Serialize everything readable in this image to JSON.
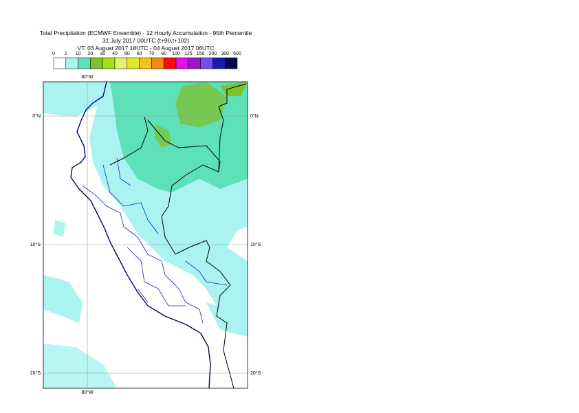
{
  "header": {
    "title": "Total Precipitation (ECMWF Ensemble) - 12 Hourly Accumulation - 95th Percentile",
    "base_time": "31 July 2017 00UTC (t+90,t+102)",
    "valid_time": "VT: 03 August 2017 18UTC - 04 August 2017 06UTC"
  },
  "colorbar": {
    "levels": [
      0,
      1,
      10,
      20,
      30,
      40,
      50,
      60,
      70,
      80,
      100,
      125,
      150,
      200,
      300,
      500
    ],
    "colors": [
      "#ffffff",
      "#aaf3f0",
      "#5ee0b9",
      "#7dc12d",
      "#a4e019",
      "#dff56e",
      "#e5e52f",
      "#f2c31f",
      "#f78a0f",
      "#f70b0b",
      "#e60de6",
      "#9a16c7",
      "#6e4ff2",
      "#1c1ca8",
      "#0c0a4f"
    ]
  },
  "map": {
    "lon_labels": [
      "80°W",
      "80°W"
    ],
    "lat_labels_left": [
      "0°N",
      "10°S",
      "20°S"
    ],
    "lat_labels_right": [
      "0°N",
      "10°S",
      "20°S"
    ]
  }
}
